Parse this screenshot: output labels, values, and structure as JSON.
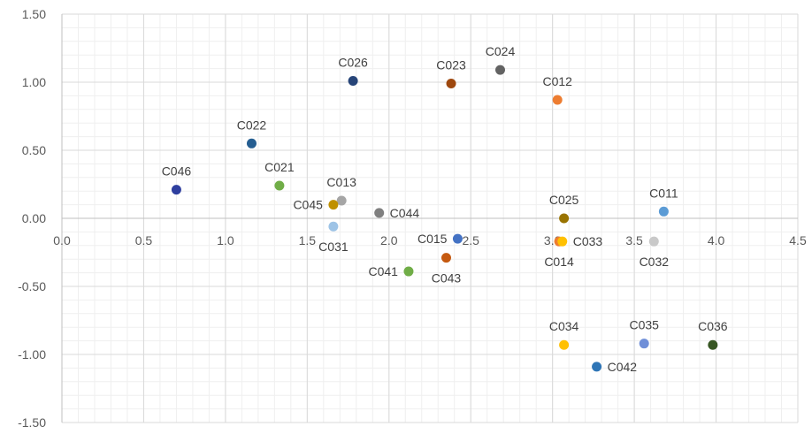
{
  "chart_data": {
    "type": "scatter",
    "xlim": [
      0,
      4.5
    ],
    "ylim": [
      -1.5,
      1.5
    ],
    "x_ticks": [
      {
        "value": 0.0,
        "label": "0.0"
      },
      {
        "value": 0.5,
        "label": "0.5"
      },
      {
        "value": 1.0,
        "label": "1.0"
      },
      {
        "value": 1.5,
        "label": "1.5"
      },
      {
        "value": 2.0,
        "label": "2.0"
      },
      {
        "value": 2.5,
        "label": "2.5"
      },
      {
        "value": 3.0,
        "label": "3.0"
      },
      {
        "value": 3.5,
        "label": "3.5"
      },
      {
        "value": 4.0,
        "label": "4.0"
      },
      {
        "value": 4.5,
        "label": "4.5"
      }
    ],
    "y_ticks": [
      {
        "value": 1.5,
        "label": "1.50"
      },
      {
        "value": 1.0,
        "label": "1.00"
      },
      {
        "value": 0.5,
        "label": "0.50"
      },
      {
        "value": 0.0,
        "label": "0.00"
      },
      {
        "value": -0.5,
        "label": "-0.50"
      },
      {
        "value": -1.0,
        "label": "-1.00"
      },
      {
        "value": -1.5,
        "label": "-1.50"
      }
    ],
    "grid": true,
    "minor_grid": true,
    "axis_color": "#bfbfbf",
    "major_grid_color": "#d9d9d9",
    "minor_grid_color": "#efefef",
    "points": [
      {
        "label": "C011",
        "x": 3.68,
        "y": 0.05,
        "color": "#5b9bd5",
        "label_pos": "above"
      },
      {
        "label": "C012",
        "x": 3.03,
        "y": 0.87,
        "color": "#ed7d31",
        "label_pos": "above"
      },
      {
        "label": "C013",
        "x": 1.71,
        "y": 0.13,
        "color": "#a5a5a5",
        "label_pos": "above"
      },
      {
        "label": "C014",
        "x": 3.04,
        "y": -0.17,
        "color": "#ed7d31",
        "label_pos": "below"
      },
      {
        "label": "C015",
        "x": 2.42,
        "y": -0.15,
        "color": "#4472c4",
        "label_pos": "left"
      },
      {
        "label": "C021",
        "x": 1.33,
        "y": 0.24,
        "color": "#70ad47",
        "label_pos": "above"
      },
      {
        "label": "C022",
        "x": 1.16,
        "y": 0.55,
        "color": "#255e91",
        "label_pos": "above"
      },
      {
        "label": "C023",
        "x": 2.38,
        "y": 0.99,
        "color": "#9e480e",
        "label_pos": "above"
      },
      {
        "label": "C024",
        "x": 2.68,
        "y": 1.09,
        "color": "#636363",
        "label_pos": "above"
      },
      {
        "label": "C025",
        "x": 3.07,
        "y": 0.0,
        "color": "#997300",
        "label_pos": "above"
      },
      {
        "label": "C026",
        "x": 1.78,
        "y": 1.01,
        "color": "#264478",
        "label_pos": "above"
      },
      {
        "label": "C031",
        "x": 1.66,
        "y": -0.06,
        "color": "#9dc3e6",
        "label_pos": "below"
      },
      {
        "label": "C032",
        "x": 3.62,
        "y": -0.17,
        "color": "#c9c9c9",
        "label_pos": "below"
      },
      {
        "label": "C033",
        "x": 3.06,
        "y": -0.17,
        "color": "#ffc000",
        "label_pos": "right"
      },
      {
        "label": "C034",
        "x": 3.07,
        "y": -0.93,
        "color": "#ffc000",
        "label_pos": "above"
      },
      {
        "label": "C035",
        "x": 3.56,
        "y": -0.92,
        "color": "#6f8fd8",
        "label_pos": "above"
      },
      {
        "label": "C036",
        "x": 3.98,
        "y": -0.93,
        "color": "#375623",
        "label_pos": "above"
      },
      {
        "label": "C041",
        "x": 2.12,
        "y": -0.39,
        "color": "#70ad47",
        "label_pos": "left"
      },
      {
        "label": "C042",
        "x": 3.27,
        "y": -1.09,
        "color": "#2e75b6",
        "label_pos": "right"
      },
      {
        "label": "C043",
        "x": 2.35,
        "y": -0.29,
        "color": "#c55a11",
        "label_pos": "below"
      },
      {
        "label": "C044",
        "x": 1.94,
        "y": 0.04,
        "color": "#7f7f7f",
        "label_pos": "right"
      },
      {
        "label": "C045",
        "x": 1.66,
        "y": 0.1,
        "color": "#bf9000",
        "label_pos": "left"
      },
      {
        "label": "C046",
        "x": 0.7,
        "y": 0.21,
        "color": "#2f3f9f",
        "label_pos": "above"
      }
    ]
  }
}
